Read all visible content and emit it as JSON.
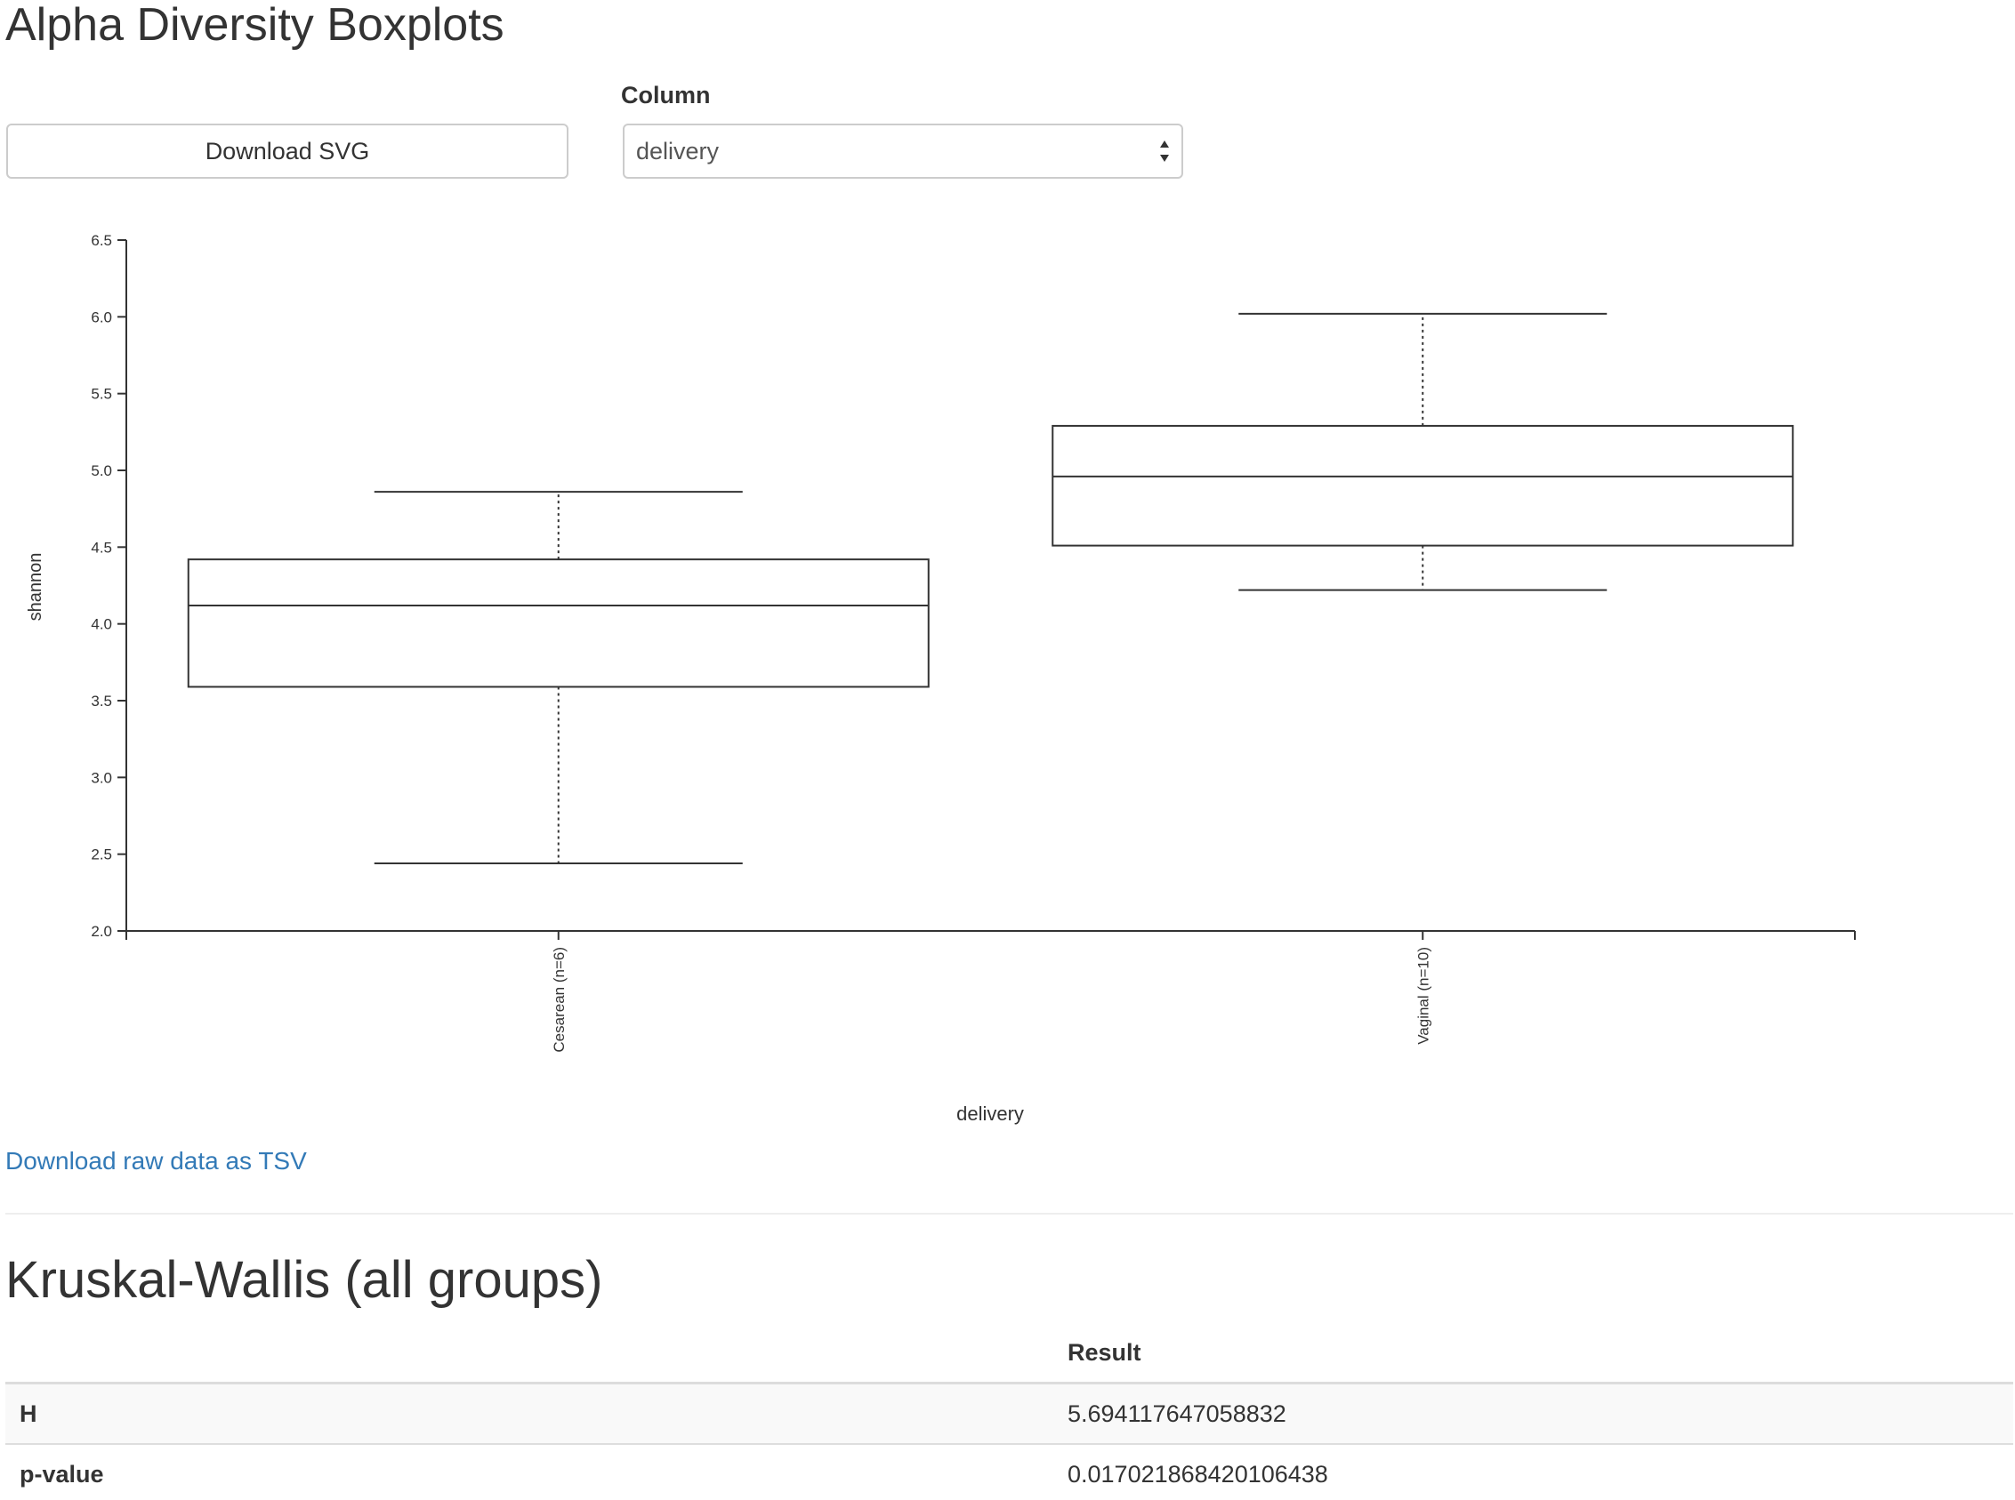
{
  "page": {
    "title": "Alpha Diversity Boxplots"
  },
  "controls": {
    "download_svg_label": "Download SVG",
    "column_label": "Column",
    "column_selected": "delivery"
  },
  "chart_data": {
    "type": "boxplot",
    "xlabel": "delivery",
    "ylabel": "shannon",
    "ylim": [
      2.0,
      6.5
    ],
    "yticks": [
      "2.0",
      "2.5",
      "3.0",
      "3.5",
      "4.0",
      "4.5",
      "5.0",
      "5.5",
      "6.0",
      "6.5"
    ],
    "grid": false,
    "categories": [
      "Cesarean (n=6)",
      "Vaginal (n=10)"
    ],
    "boxes": [
      {
        "label": "Cesarean (n=6)",
        "whisker_low": 2.44,
        "q1": 3.59,
        "median": 4.12,
        "q3": 4.42,
        "whisker_high": 4.86
      },
      {
        "label": "Vaginal (n=10)",
        "whisker_low": 4.22,
        "q1": 4.51,
        "median": 4.96,
        "q3": 5.29,
        "whisker_high": 6.02
      }
    ]
  },
  "links": {
    "raw_data_label": "Download raw data as TSV"
  },
  "stats": {
    "title": "Kruskal-Wallis (all groups)",
    "result_header": "Result",
    "rows": [
      {
        "label": "H",
        "value": "5.694117647058832"
      },
      {
        "label": "p-value",
        "value": "0.017021868420106438"
      }
    ]
  }
}
